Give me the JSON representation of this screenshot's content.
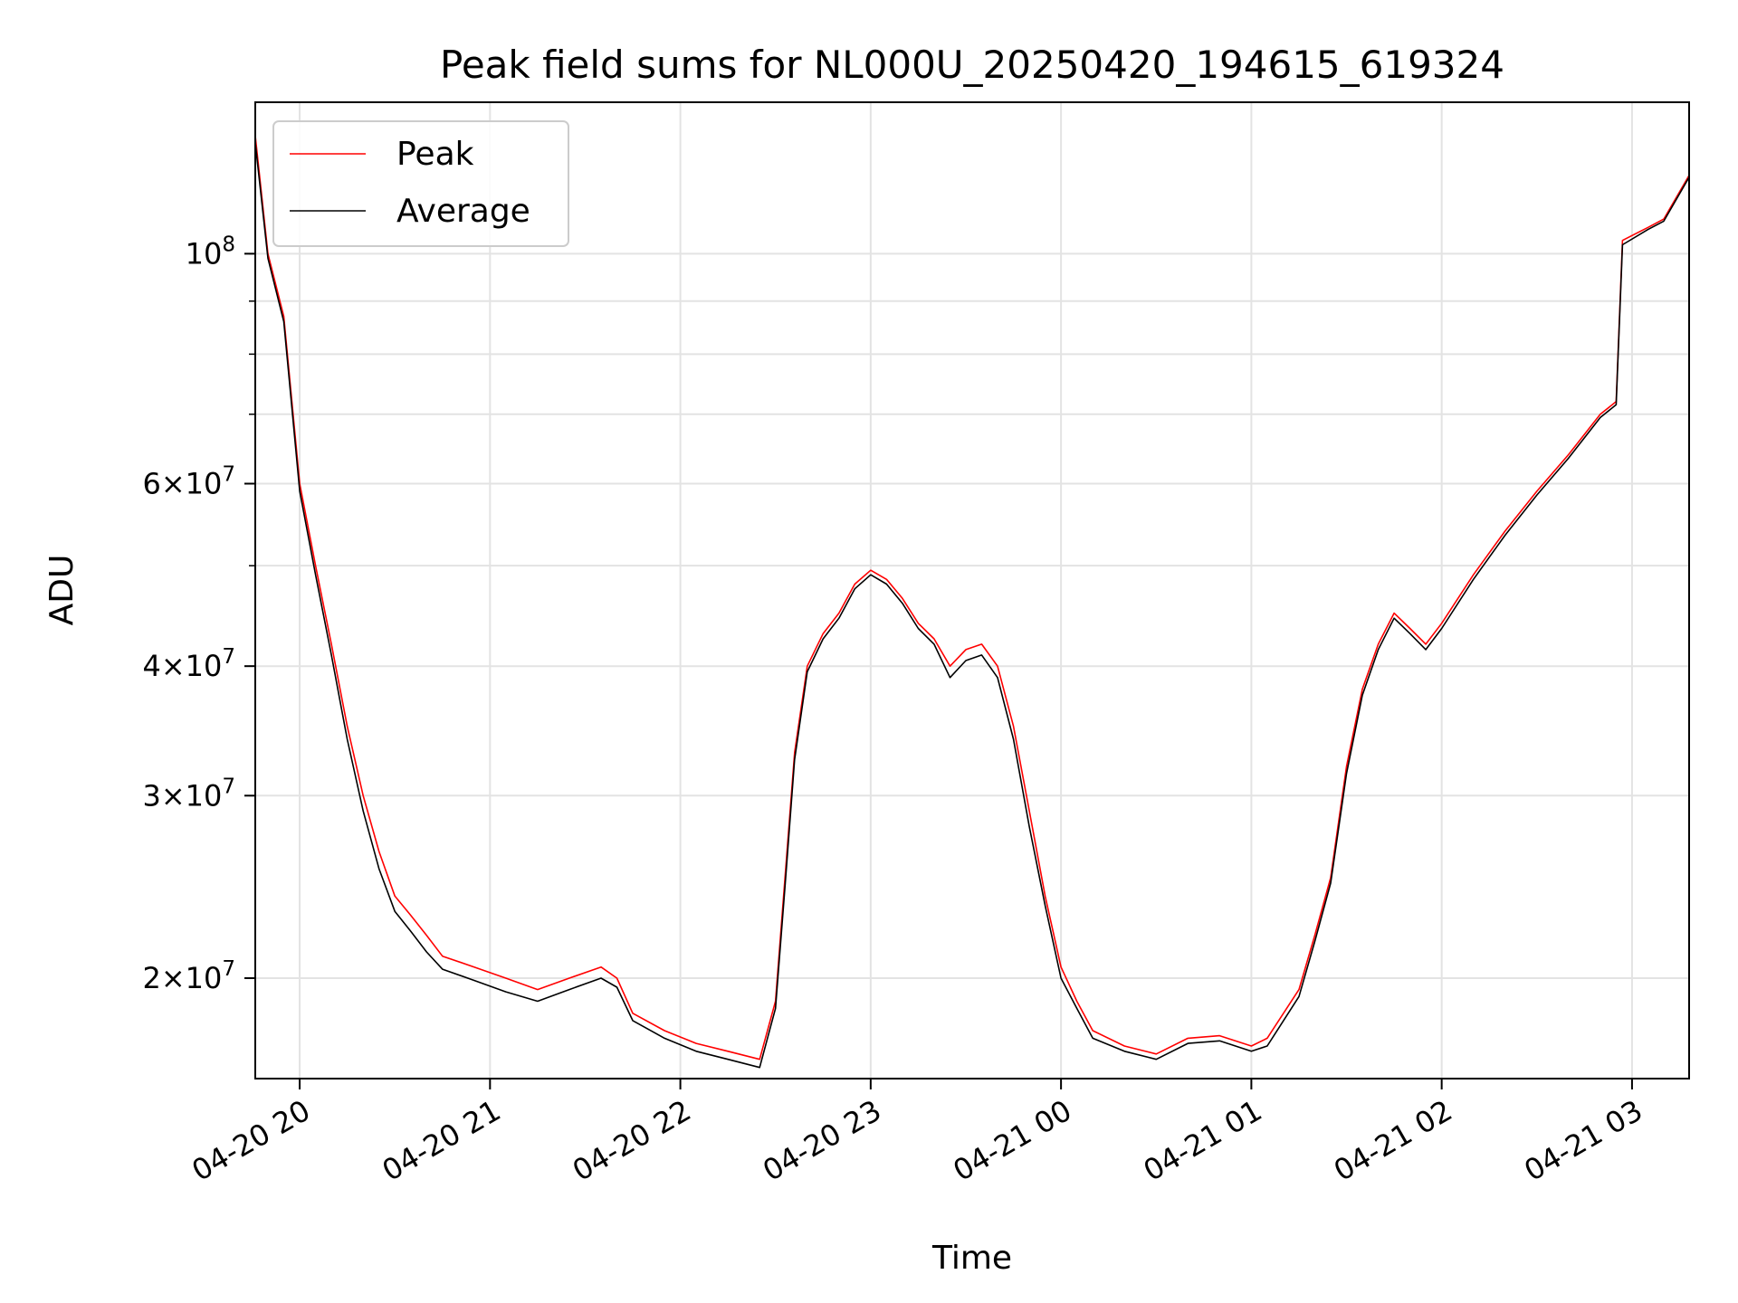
{
  "chart_data": {
    "type": "line",
    "title": "Peak field sums for NL000U_20250420_194615_619324",
    "xlabel": "Time",
    "ylabel": "ADU",
    "x_range": [
      "2025-04-20 19:46",
      "2025-04-21 03:18"
    ],
    "ylim": [
      16000000,
      140000000
    ],
    "y_scale": "log",
    "grid": true,
    "legend_position": "top-left",
    "x_tick_labels": [
      "04-20 20",
      "04-20 21",
      "04-20 22",
      "04-20 23",
      "04-21 00",
      "04-21 01",
      "04-21 02",
      "04-21 03"
    ],
    "x_tick_times": [
      "2025-04-20 20:00",
      "2025-04-20 21:00",
      "2025-04-20 22:00",
      "2025-04-20 23:00",
      "2025-04-21 00:00",
      "2025-04-21 01:00",
      "2025-04-21 02:00",
      "2025-04-21 03:00"
    ],
    "y_tick_labels": [
      {
        "value": 20000000,
        "mantissa": "2",
        "exp": "7"
      },
      {
        "value": 30000000,
        "mantissa": "3",
        "exp": "7"
      },
      {
        "value": 40000000,
        "mantissa": "4",
        "exp": "7"
      },
      {
        "value": 60000000,
        "mantissa": "6",
        "exp": "7"
      },
      {
        "value": 100000000,
        "mantissa": "",
        "exp": "8"
      }
    ],
    "y_minor_gridlines": [
      20000000,
      30000000,
      40000000,
      50000000,
      60000000,
      70000000,
      80000000,
      90000000,
      100000000
    ],
    "series": [
      {
        "name": "Peak",
        "color": "#ff0000",
        "points": [
          [
            "2025-04-20 19:46",
            130000000
          ],
          [
            "2025-04-20 19:50",
            100000000
          ],
          [
            "2025-04-20 19:55",
            87000000
          ],
          [
            "2025-04-20 20:00",
            60000000
          ],
          [
            "2025-04-20 20:05",
            50000000
          ],
          [
            "2025-04-20 20:10",
            42000000
          ],
          [
            "2025-04-20 20:15",
            35000000
          ],
          [
            "2025-04-20 20:20",
            30000000
          ],
          [
            "2025-04-20 20:25",
            26500000
          ],
          [
            "2025-04-20 20:30",
            24000000
          ],
          [
            "2025-04-20 20:35",
            23000000
          ],
          [
            "2025-04-20 20:40",
            22000000
          ],
          [
            "2025-04-20 20:45",
            21000000
          ],
          [
            "2025-04-20 20:55",
            20500000
          ],
          [
            "2025-04-20 21:05",
            20000000
          ],
          [
            "2025-04-20 21:15",
            19500000
          ],
          [
            "2025-04-20 21:25",
            20000000
          ],
          [
            "2025-04-20 21:35",
            20500000
          ],
          [
            "2025-04-20 21:40",
            20000000
          ],
          [
            "2025-04-20 21:45",
            18500000
          ],
          [
            "2025-04-20 21:55",
            17800000
          ],
          [
            "2025-04-20 22:05",
            17300000
          ],
          [
            "2025-04-20 22:15",
            17000000
          ],
          [
            "2025-04-20 22:25",
            16700000
          ],
          [
            "2025-04-20 22:30",
            19000000
          ],
          [
            "2025-04-20 22:33",
            25000000
          ],
          [
            "2025-04-20 22:36",
            33000000
          ],
          [
            "2025-04-20 22:40",
            40000000
          ],
          [
            "2025-04-20 22:45",
            43000000
          ],
          [
            "2025-04-20 22:50",
            45000000
          ],
          [
            "2025-04-20 22:55",
            48000000
          ],
          [
            "2025-04-20 23:00",
            49500000
          ],
          [
            "2025-04-20 23:05",
            48500000
          ],
          [
            "2025-04-20 23:10",
            46500000
          ],
          [
            "2025-04-20 23:15",
            44000000
          ],
          [
            "2025-04-20 23:20",
            42500000
          ],
          [
            "2025-04-20 23:25",
            40000000
          ],
          [
            "2025-04-20 23:30",
            41500000
          ],
          [
            "2025-04-20 23:35",
            42000000
          ],
          [
            "2025-04-20 23:40",
            40000000
          ],
          [
            "2025-04-20 23:45",
            35000000
          ],
          [
            "2025-04-20 23:50",
            29000000
          ],
          [
            "2025-04-20 23:55",
            24000000
          ],
          [
            "2025-04-21 00:00",
            20500000
          ],
          [
            "2025-04-21 00:05",
            19000000
          ],
          [
            "2025-04-21 00:10",
            17800000
          ],
          [
            "2025-04-21 00:20",
            17200000
          ],
          [
            "2025-04-21 00:30",
            16900000
          ],
          [
            "2025-04-21 00:40",
            17500000
          ],
          [
            "2025-04-21 00:50",
            17600000
          ],
          [
            "2025-04-21 01:00",
            17200000
          ],
          [
            "2025-04-21 01:05",
            17500000
          ],
          [
            "2025-04-21 01:15",
            19500000
          ],
          [
            "2025-04-21 01:20",
            22000000
          ],
          [
            "2025-04-21 01:25",
            25000000
          ],
          [
            "2025-04-21 01:30",
            32000000
          ],
          [
            "2025-04-21 01:35",
            38000000
          ],
          [
            "2025-04-21 01:40",
            42000000
          ],
          [
            "2025-04-21 01:45",
            45000000
          ],
          [
            "2025-04-21 01:50",
            43500000
          ],
          [
            "2025-04-21 01:55",
            42000000
          ],
          [
            "2025-04-21 02:00",
            44000000
          ],
          [
            "2025-04-21 02:10",
            49000000
          ],
          [
            "2025-04-21 02:20",
            54000000
          ],
          [
            "2025-04-21 02:30",
            59000000
          ],
          [
            "2025-04-21 02:40",
            64000000
          ],
          [
            "2025-04-21 02:50",
            70000000
          ],
          [
            "2025-04-21 02:55",
            72000000
          ],
          [
            "2025-04-21 02:57",
            103000000
          ],
          [
            "2025-04-21 03:05",
            106000000
          ],
          [
            "2025-04-21 03:10",
            108000000
          ],
          [
            "2025-04-21 03:18",
            119000000
          ]
        ]
      },
      {
        "name": "Average",
        "color": "#000000",
        "points": [
          [
            "2025-04-20 19:46",
            128000000
          ],
          [
            "2025-04-20 19:50",
            99000000
          ],
          [
            "2025-04-20 19:55",
            86000000
          ],
          [
            "2025-04-20 20:00",
            59000000
          ],
          [
            "2025-04-20 20:05",
            49000000
          ],
          [
            "2025-04-20 20:10",
            41000000
          ],
          [
            "2025-04-20 20:15",
            34000000
          ],
          [
            "2025-04-20 20:20",
            29000000
          ],
          [
            "2025-04-20 20:25",
            25500000
          ],
          [
            "2025-04-20 20:30",
            23200000
          ],
          [
            "2025-04-20 20:35",
            22200000
          ],
          [
            "2025-04-20 20:40",
            21200000
          ],
          [
            "2025-04-20 20:45",
            20400000
          ],
          [
            "2025-04-20 20:55",
            19900000
          ],
          [
            "2025-04-20 21:05",
            19400000
          ],
          [
            "2025-04-20 21:15",
            19000000
          ],
          [
            "2025-04-20 21:25",
            19500000
          ],
          [
            "2025-04-20 21:35",
            20000000
          ],
          [
            "2025-04-20 21:40",
            19600000
          ],
          [
            "2025-04-20 21:45",
            18200000
          ],
          [
            "2025-04-20 21:55",
            17500000
          ],
          [
            "2025-04-20 22:05",
            17000000
          ],
          [
            "2025-04-20 22:15",
            16700000
          ],
          [
            "2025-04-20 22:25",
            16400000
          ],
          [
            "2025-04-20 22:30",
            18700000
          ],
          [
            "2025-04-20 22:33",
            24500000
          ],
          [
            "2025-04-20 22:36",
            32500000
          ],
          [
            "2025-04-20 22:40",
            39500000
          ],
          [
            "2025-04-20 22:45",
            42500000
          ],
          [
            "2025-04-20 22:50",
            44500000
          ],
          [
            "2025-04-20 22:55",
            47500000
          ],
          [
            "2025-04-20 23:00",
            49000000
          ],
          [
            "2025-04-20 23:05",
            48000000
          ],
          [
            "2025-04-20 23:10",
            46000000
          ],
          [
            "2025-04-20 23:15",
            43500000
          ],
          [
            "2025-04-20 23:20",
            42000000
          ],
          [
            "2025-04-20 23:25",
            39000000
          ],
          [
            "2025-04-20 23:30",
            40500000
          ],
          [
            "2025-04-20 23:35",
            41000000
          ],
          [
            "2025-04-20 23:40",
            39000000
          ],
          [
            "2025-04-20 23:45",
            34000000
          ],
          [
            "2025-04-20 23:50",
            28000000
          ],
          [
            "2025-04-20 23:55",
            23500000
          ],
          [
            "2025-04-21 00:00",
            20000000
          ],
          [
            "2025-04-21 00:05",
            18700000
          ],
          [
            "2025-04-21 00:10",
            17500000
          ],
          [
            "2025-04-21 00:20",
            17000000
          ],
          [
            "2025-04-21 00:30",
            16700000
          ],
          [
            "2025-04-21 00:40",
            17300000
          ],
          [
            "2025-04-21 00:50",
            17400000
          ],
          [
            "2025-04-21 01:00",
            17000000
          ],
          [
            "2025-04-21 01:05",
            17200000
          ],
          [
            "2025-04-21 01:15",
            19200000
          ],
          [
            "2025-04-21 01:20",
            21700000
          ],
          [
            "2025-04-21 01:25",
            24700000
          ],
          [
            "2025-04-21 01:30",
            31500000
          ],
          [
            "2025-04-21 01:35",
            37500000
          ],
          [
            "2025-04-21 01:40",
            41500000
          ],
          [
            "2025-04-21 01:45",
            44500000
          ],
          [
            "2025-04-21 01:50",
            43000000
          ],
          [
            "2025-04-21 01:55",
            41500000
          ],
          [
            "2025-04-21 02:00",
            43500000
          ],
          [
            "2025-04-21 02:10",
            48500000
          ],
          [
            "2025-04-21 02:20",
            53500000
          ],
          [
            "2025-04-21 02:30",
            58500000
          ],
          [
            "2025-04-21 02:40",
            63500000
          ],
          [
            "2025-04-21 02:50",
            69500000
          ],
          [
            "2025-04-21 02:55",
            71500000
          ],
          [
            "2025-04-21 02:57",
            102000000
          ],
          [
            "2025-04-21 03:05",
            105500000
          ],
          [
            "2025-04-21 03:10",
            107500000
          ],
          [
            "2025-04-21 03:18",
            118500000
          ]
        ]
      }
    ]
  }
}
